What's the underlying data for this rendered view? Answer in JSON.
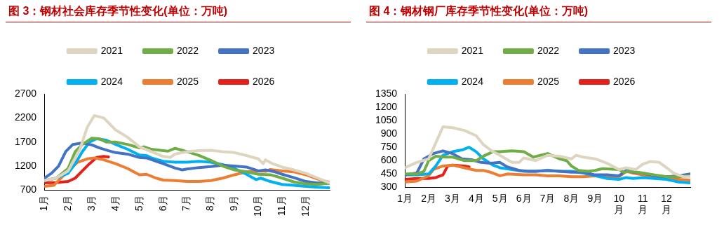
{
  "chart_data": [
    {
      "type": "line",
      "title": "图 3：钢材社会库存季节性变化(单位：万吨)",
      "legend": "top",
      "grid": false,
      "marker": "none",
      "line_style": "solid",
      "xlim": [
        1,
        13
      ],
      "xticks": [
        {
          "value": 1,
          "label": "1月"
        },
        {
          "value": 2,
          "label": "2月"
        },
        {
          "value": 3,
          "label": "3月"
        },
        {
          "value": 4,
          "label": "4月"
        },
        {
          "value": 5,
          "label": "5月"
        },
        {
          "value": 6,
          "label": "6月"
        },
        {
          "value": 7,
          "label": "7月"
        },
        {
          "value": 8,
          "label": "8月"
        },
        {
          "value": 9,
          "label": "9月"
        },
        {
          "value": 10,
          "label": "10月"
        },
        {
          "value": 11,
          "label": "11月"
        },
        {
          "value": 12,
          "label": "12月"
        }
      ],
      "ylim": [
        700,
        2700
      ],
      "yticks": [
        700,
        1200,
        1700,
        2200,
        2700
      ],
      "series": [
        {
          "name": "2021",
          "color": "#ddd5c0",
          "x": [
            1,
            1.5,
            2,
            2.5,
            2.8,
            3.1,
            3.5,
            4,
            4.5,
            5,
            5.5,
            6,
            6.3,
            6.5,
            7,
            7.5,
            8,
            8.5,
            9,
            9.5,
            10,
            10.2,
            10.3,
            10.6,
            11,
            11.5,
            12,
            12.5,
            13
          ],
          "values": [
            900,
            950,
            1100,
            1550,
            2000,
            2250,
            2200,
            1950,
            1800,
            1600,
            1500,
            1400,
            1380,
            1450,
            1500,
            1520,
            1530,
            1500,
            1480,
            1420,
            1350,
            1250,
            1330,
            1250,
            1180,
            1120,
            1050,
            950,
            850
          ]
        },
        {
          "name": "2022",
          "color": "#70ad47",
          "x": [
            1,
            1.5,
            2,
            2.3,
            2.6,
            3,
            3.3,
            3.6,
            4,
            4.5,
            5,
            5.2,
            5.5,
            6,
            6.2,
            6.5,
            7,
            7.5,
            8,
            8.5,
            9,
            9.5,
            10,
            10.5,
            11,
            11.5,
            12,
            12.5,
            13
          ],
          "values": [
            900,
            950,
            1150,
            1500,
            1650,
            1780,
            1770,
            1700,
            1700,
            1650,
            1580,
            1600,
            1550,
            1520,
            1510,
            1570,
            1500,
            1420,
            1320,
            1200,
            1120,
            1080,
            1030,
            1020,
            950,
            870,
            830,
            820,
            850
          ]
        },
        {
          "name": "2023",
          "color": "#4472c4",
          "x": [
            1,
            1.3,
            1.6,
            1.9,
            2.2,
            2.6,
            3,
            3.3,
            3.7,
            4,
            4.5,
            5,
            5.3,
            5.7,
            6,
            6.5,
            6.8,
            7,
            7.5,
            8,
            8.5,
            9,
            9.5,
            10,
            10.3,
            10.7,
            11,
            11.5,
            12,
            12.5,
            13
          ],
          "values": [
            950,
            1050,
            1200,
            1500,
            1650,
            1680,
            1640,
            1580,
            1520,
            1480,
            1450,
            1380,
            1370,
            1300,
            1250,
            1160,
            1120,
            1140,
            1170,
            1190,
            1220,
            1200,
            1180,
            1100,
            1120,
            1080,
            1030,
            960,
            880,
            850,
            840
          ]
        },
        {
          "name": "2024",
          "color": "#00b0f0",
          "x": [
            1,
            1.5,
            2,
            2.3,
            2.6,
            2.9,
            3.2,
            3.6,
            4,
            4.5,
            5,
            5.3,
            5.5,
            6,
            6.5,
            7,
            7.5,
            8,
            8.5,
            9,
            9.5,
            9.9,
            10.1,
            10.5,
            11,
            11.5,
            12,
            12.5,
            13
          ],
          "values": [
            900,
            950,
            1050,
            1250,
            1500,
            1700,
            1770,
            1740,
            1650,
            1550,
            1430,
            1420,
            1370,
            1300,
            1280,
            1280,
            1300,
            1280,
            1230,
            1150,
            1030,
            920,
            950,
            880,
            820,
            800,
            780,
            760,
            750
          ]
        },
        {
          "name": "2025",
          "color": "#ed7d31",
          "x": [
            1,
            1.4,
            1.6,
            2,
            2.4,
            2.8,
            3.1,
            3.5,
            4,
            4.5,
            5,
            5.3,
            5.7,
            6,
            6.5,
            7,
            7.5,
            8,
            8.5,
            9,
            9.5,
            10,
            10.3,
            10.5,
            11,
            11.5,
            12,
            12.5,
            13
          ],
          "values": [
            780,
            800,
            900,
            1100,
            1280,
            1350,
            1370,
            1330,
            1250,
            1150,
            1020,
            1030,
            950,
            910,
            900,
            880,
            880,
            900,
            950,
            1020,
            1080,
            1100,
            1090,
            1130,
            1100,
            1080,
            1020,
            930,
            860
          ]
        },
        {
          "name": "2026",
          "color": "#e32119",
          "x": [
            1,
            1.5,
            2,
            2.3,
            2.6,
            2.9,
            3.2,
            3.5,
            3.7
          ],
          "values": [
            850,
            860,
            880,
            950,
            1100,
            1250,
            1380,
            1400,
            1390
          ]
        }
      ]
    },
    {
      "type": "line",
      "title": "图 4：钢材钢厂库存季节性变化(单位：万吨)",
      "legend": "top",
      "grid": false,
      "marker": "none",
      "line_style": "solid",
      "xlim": [
        1,
        13
      ],
      "xticks": [
        {
          "value": 1,
          "label": "1月"
        },
        {
          "value": 2,
          "label": "2月"
        },
        {
          "value": 3,
          "label": "3月"
        },
        {
          "value": 4,
          "label": "4月"
        },
        {
          "value": 5,
          "label": "5月"
        },
        {
          "value": 6,
          "label": "6月"
        },
        {
          "value": 7,
          "label": "7月"
        },
        {
          "value": 8,
          "label": "8月"
        },
        {
          "value": 9,
          "label": "9月"
        },
        {
          "value": 10,
          "label": "10月"
        },
        {
          "value": 11,
          "label": "11月"
        },
        {
          "value": 12,
          "label": "12月"
        }
      ],
      "ylim": [
        300,
        1350
      ],
      "yticks": [
        300,
        450,
        600,
        750,
        900,
        1050,
        1200,
        1350
      ],
      "series": [
        {
          "name": "2021",
          "color": "#ddd5c0",
          "x": [
            1,
            1.5,
            2,
            2.3,
            2.6,
            3,
            3.5,
            4,
            4.3,
            4.7,
            5,
            5.5,
            5.8,
            6,
            6.5,
            7,
            7.5,
            8,
            8.2,
            8.5,
            9,
            9.5,
            10,
            10.3,
            10.7,
            11,
            11.3,
            11.7,
            12,
            12.3,
            12.7,
            13
          ],
          "values": [
            520,
            580,
            620,
            800,
            980,
            970,
            940,
            880,
            780,
            700,
            660,
            580,
            580,
            630,
            600,
            660,
            650,
            620,
            660,
            640,
            620,
            570,
            500,
            520,
            500,
            560,
            590,
            580,
            520,
            460,
            420,
            420
          ]
        },
        {
          "name": "2022",
          "color": "#70ad47",
          "x": [
            1,
            1.5,
            1.8,
            2,
            2.3,
            2.7,
            3,
            3.5,
            4,
            4.3,
            4.7,
            5,
            5.5,
            6,
            6.4,
            6.7,
            7,
            7.5,
            7.8,
            8,
            8.3,
            8.7,
            9,
            9.3,
            10,
            10.2,
            10.5,
            11,
            11.5,
            12,
            12.5,
            13
          ],
          "values": [
            450,
            450,
            480,
            600,
            650,
            640,
            640,
            600,
            600,
            650,
            700,
            700,
            710,
            700,
            640,
            660,
            680,
            620,
            600,
            540,
            490,
            480,
            490,
            510,
            500,
            470,
            480,
            460,
            440,
            420,
            420,
            430
          ]
        },
        {
          "name": "2023",
          "color": "#4472c4",
          "x": [
            1,
            1.5,
            1.8,
            2.2,
            2.6,
            3,
            3.4,
            3.8,
            4.2,
            4.6,
            5,
            5.3,
            5.8,
            6.2,
            6.5,
            7,
            7.5,
            8,
            8.5,
            9,
            9.5,
            10,
            10.3,
            10.6,
            11,
            11.5,
            12,
            12.5,
            13
          ],
          "values": [
            440,
            460,
            620,
            680,
            710,
            680,
            620,
            610,
            580,
            570,
            580,
            530,
            490,
            480,
            480,
            490,
            480,
            470,
            470,
            440,
            440,
            430,
            490,
            470,
            460,
            430,
            420,
            430,
            450
          ]
        },
        {
          "name": "2024",
          "color": "#00b0f0",
          "x": [
            1,
            1.5,
            2,
            2.3,
            2.6,
            3,
            3.4,
            3.7,
            4,
            4.3,
            4.7,
            5,
            5.5,
            6,
            6.5,
            7,
            7.5,
            8,
            8.5,
            9,
            9.5,
            10,
            10.3,
            10.6,
            11,
            11.5,
            12,
            12.5,
            13
          ],
          "values": [
            440,
            440,
            450,
            540,
            660,
            700,
            720,
            750,
            700,
            620,
            550,
            520,
            500,
            480,
            480,
            490,
            480,
            480,
            460,
            430,
            400,
            390,
            410,
            400,
            410,
            400,
            390,
            360,
            350
          ]
        },
        {
          "name": "2025",
          "color": "#ed7d31",
          "x": [
            1,
            1.5,
            2,
            2.2,
            2.6,
            3,
            3.5,
            4,
            4.3,
            4.6,
            5,
            5.3,
            6,
            6.5,
            7,
            7.5,
            8,
            8.5,
            9,
            9.5,
            10,
            10.3,
            10.6,
            11,
            11.5,
            12,
            12.5,
            13
          ],
          "values": [
            360,
            370,
            430,
            500,
            540,
            550,
            520,
            490,
            490,
            470,
            430,
            450,
            440,
            440,
            430,
            430,
            420,
            420,
            430,
            420,
            420,
            480,
            460,
            440,
            420,
            400,
            390,
            380
          ]
        },
        {
          "name": "2026",
          "color": "#e32119",
          "x": [
            1,
            1.5,
            2,
            2.3,
            2.6,
            2.8,
            3,
            3.5,
            3.7
          ],
          "values": [
            390,
            400,
            400,
            410,
            440,
            540,
            550,
            540,
            530
          ]
        }
      ]
    }
  ]
}
